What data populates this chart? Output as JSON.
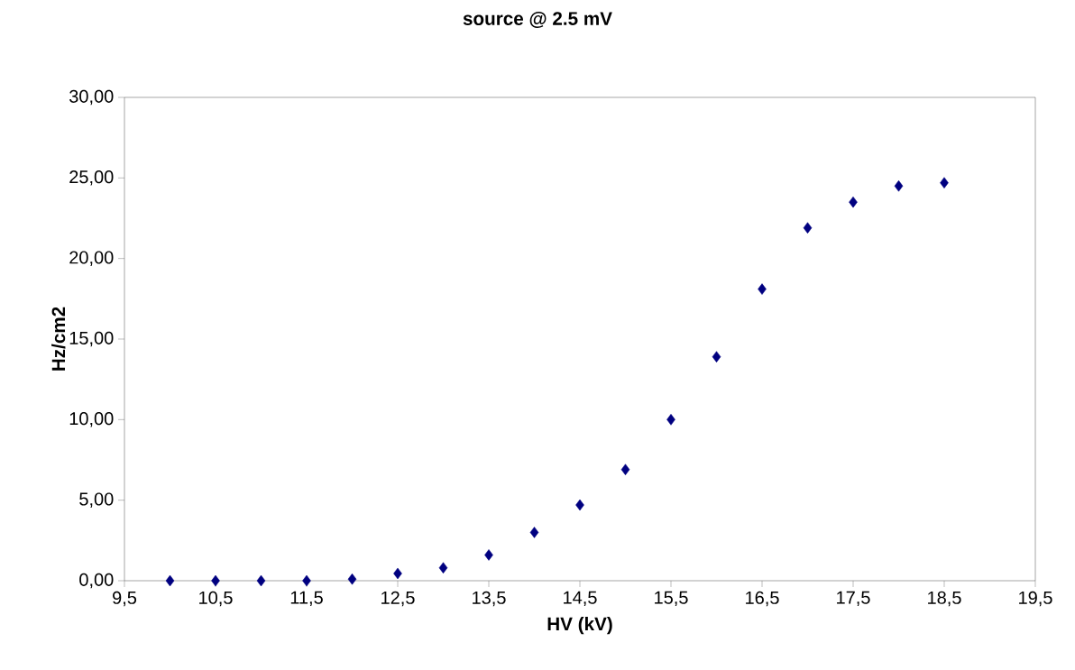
{
  "chart_data": {
    "type": "scatter",
    "title": "source @ 2.5 mV",
    "xlabel": "HV (kV)",
    "ylabel": "Hz/cm2",
    "x": [
      10,
      10.5,
      11,
      11.5,
      12,
      12.5,
      13,
      13.5,
      14,
      14.5,
      15,
      15.5,
      16,
      16.5,
      17,
      17.5,
      18,
      18.5
    ],
    "series": [
      {
        "color": "#000080",
        "values": [
          0,
          0,
          0,
          0,
          0.1,
          0.45,
          0.8,
          1.6,
          3.0,
          4.7,
          6.9,
          10.0,
          13.9,
          18.1,
          21.9,
          23.5,
          24.5,
          24.7
        ]
      }
    ],
    "xlim": [
      9.5,
      19.5
    ],
    "xticks": [
      {
        "value": 9.5,
        "label": "9,5"
      },
      {
        "value": 10.5,
        "label": "10,5"
      },
      {
        "value": 11.5,
        "label": "11,5"
      },
      {
        "value": 12.5,
        "label": "12,5"
      },
      {
        "value": 13.5,
        "label": "13,5"
      },
      {
        "value": 14.5,
        "label": "14,5"
      },
      {
        "value": 15.5,
        "label": "15,5"
      },
      {
        "value": 16.5,
        "label": "16,5"
      },
      {
        "value": 17.5,
        "label": "17,5"
      },
      {
        "value": 18.5,
        "label": "18,5"
      },
      {
        "value": 19.5,
        "label": "19,5"
      }
    ],
    "ylim": [
      0,
      30
    ],
    "yticks": [
      {
        "value": 0,
        "label": "0,00"
      },
      {
        "value": 5,
        "label": "5,00"
      },
      {
        "value": 10,
        "label": "10,00"
      },
      {
        "value": 15,
        "label": "15,00"
      },
      {
        "value": 20,
        "label": "20,00"
      },
      {
        "value": 25,
        "label": "25,00"
      },
      {
        "value": 30,
        "label": "30,00"
      }
    ],
    "grid": false,
    "marker": "diamond"
  }
}
